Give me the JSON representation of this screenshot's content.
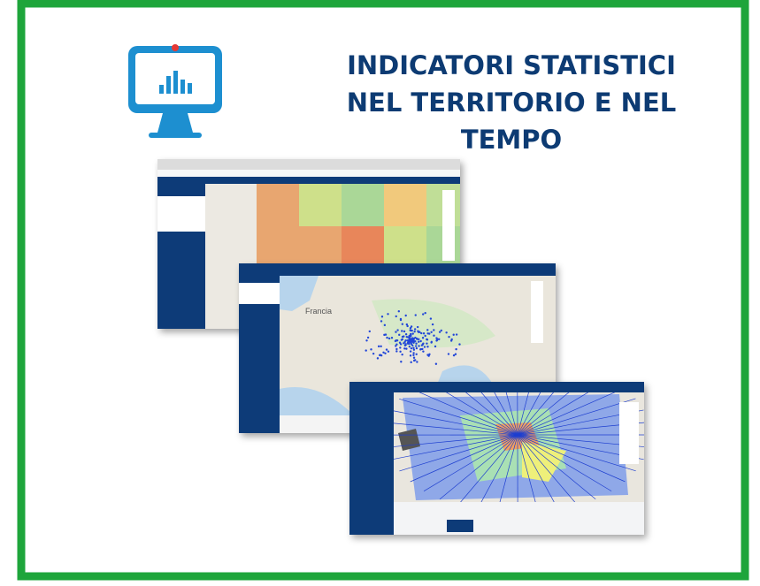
{
  "header": {
    "title_lines": [
      "INDICATORI STATISTICI",
      "NEL TERRITORIO E NEL",
      "TEMPO"
    ]
  },
  "screenshots": {
    "map_label": "Francia"
  }
}
